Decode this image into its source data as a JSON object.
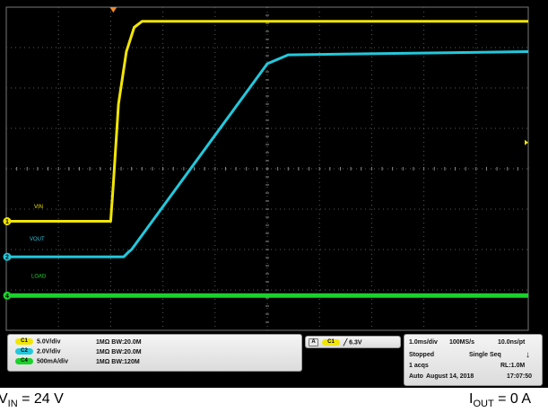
{
  "colors": {
    "ch1": "#f2e600",
    "ch2": "#22c8dc",
    "ch4": "#19d22a",
    "grid": "#5a5a5a",
    "background": "#000000"
  },
  "channel_markers": [
    "1",
    "2",
    "4"
  ],
  "trace_labels": {
    "ch1": "VIN",
    "ch2": "VOUT",
    "ch4": "LOAD"
  },
  "channel_settings": [
    {
      "badge": "C1",
      "scale": "5.0V/div",
      "coupling": "1MΩ",
      "bw": "BW:20.0M"
    },
    {
      "badge": "C2",
      "scale": "2.0V/div",
      "coupling": "1MΩ",
      "bw": "BW:20.0M"
    },
    {
      "badge": "C4",
      "scale": "500mA/div",
      "coupling": "1MΩ",
      "bw": "BW:120M"
    }
  ],
  "trigger": {
    "badge_a": "A",
    "badge_ch": "C1",
    "slope": "╱",
    "level": "6.3V"
  },
  "acquisition": {
    "time_div": "1.0ms/div",
    "sample_rate": "100MS/s",
    "resolution": "10.0ns/pt",
    "state": "Stopped",
    "mode": "Single Seq",
    "acqs": "1 acqs",
    "record_length": "RL:1.0M",
    "trigger_mode": "Auto",
    "date": "August 14, 2018",
    "time": "17:07:50"
  },
  "caption": {
    "vin_var": "V",
    "vin_sub": "IN",
    "vin_rest": " = 24 V",
    "iout_var": "I",
    "iout_sub": "OUT",
    "iout_rest": " = 0 A"
  },
  "chart_data": {
    "type": "line",
    "x_unit": "div",
    "y_unit": "div",
    "xlim": [
      0,
      10
    ],
    "ylim": [
      0,
      8
    ],
    "grid": true,
    "series": [
      {
        "name": "VIN",
        "color": "#f2e600",
        "x": [
          0,
          2.0,
          2.05,
          2.15,
          2.3,
          2.45,
          2.6,
          10
        ],
        "y": [
          2.7,
          2.7,
          3.6,
          5.6,
          6.9,
          7.5,
          7.65,
          7.65
        ]
      },
      {
        "name": "VOUT",
        "color": "#22c8dc",
        "x": [
          0,
          2.25,
          2.35,
          2.4,
          5.0,
          5.4,
          10
        ],
        "y": [
          1.82,
          1.82,
          1.95,
          2.0,
          6.6,
          6.82,
          6.9
        ]
      },
      {
        "name": "LOAD",
        "color": "#19d22a",
        "x": [
          0,
          10
        ],
        "y": [
          0.86,
          0.86
        ]
      }
    ]
  }
}
